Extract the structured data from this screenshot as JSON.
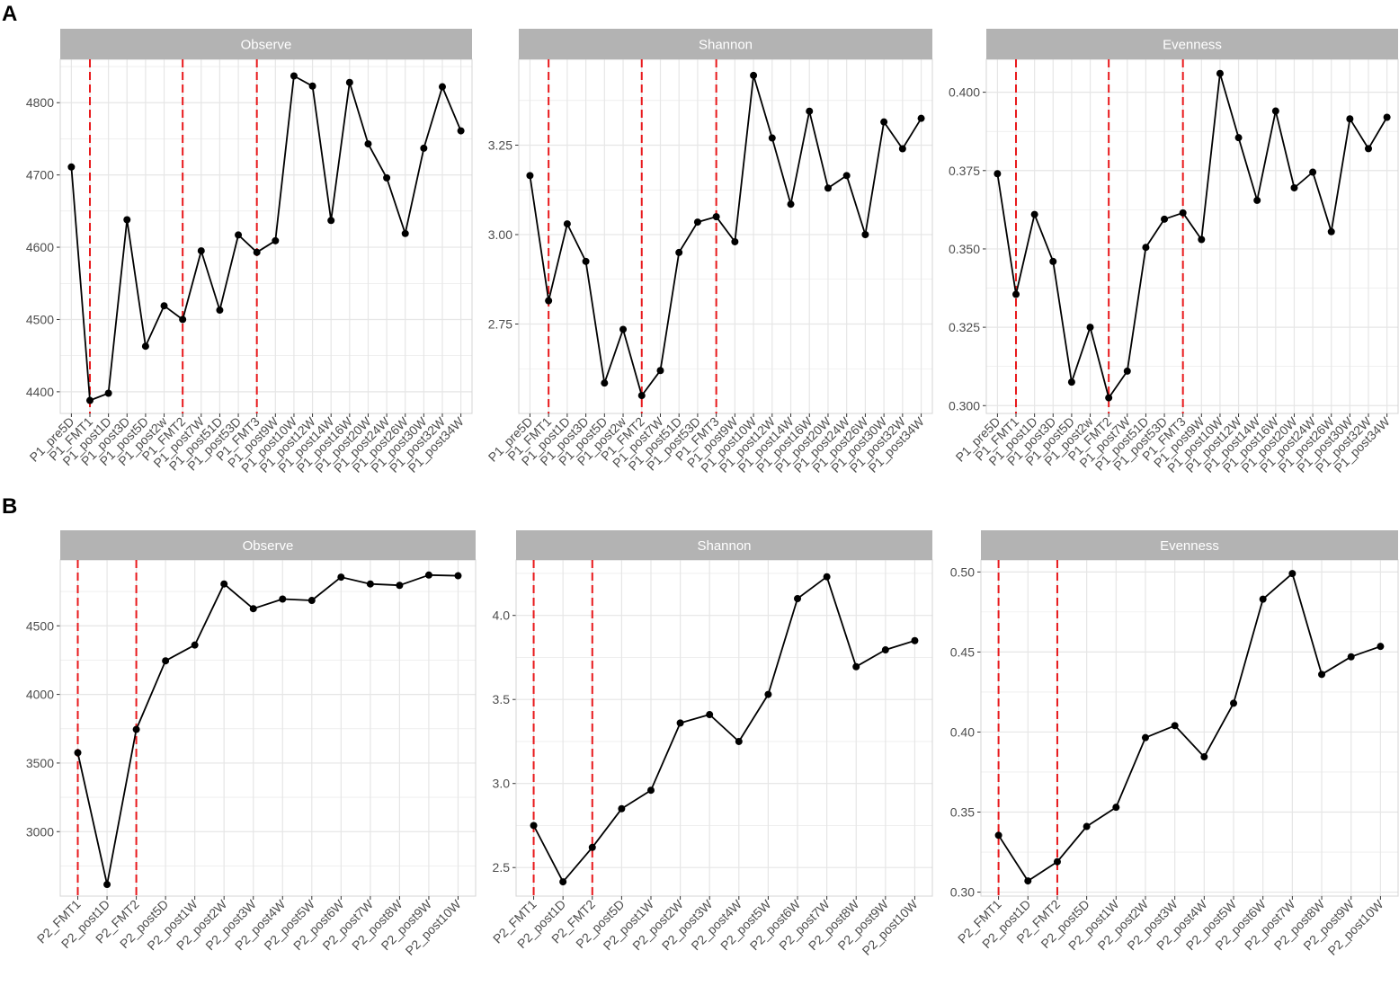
{
  "rows": [
    {
      "label": "A"
    },
    {
      "label": "B"
    }
  ],
  "colors": {
    "strip_bg": "#b3b3b3",
    "strip_text": "#ffffff",
    "grid": "#e6e6e6",
    "panel_border": "#d4d4d4",
    "line": "#000000",
    "point": "#000000",
    "vline": "#e8191c",
    "tick_text": "#4d4d4d"
  },
  "chart_data": [
    {
      "type": "line",
      "title": "Observe",
      "categories": [
        "P1_pre5D",
        "P1_FMT1",
        "P1_post1D",
        "P1_post3D",
        "P1_post5D",
        "P1_post2w",
        "P1_FMT2",
        "P1_post7W",
        "P1_post51D",
        "P1_post53D",
        "P1_FMT3",
        "P1_post9W",
        "P1_post10W",
        "P1_post12W",
        "P1_post14W",
        "P1_post16W",
        "P1_post20W",
        "P1_post24W",
        "P1_post26W",
        "P1_post30W",
        "P1_post32W",
        "P1_post34W"
      ],
      "values": [
        4711,
        4388,
        4398,
        4638,
        4463,
        4519,
        4500,
        4595,
        4513,
        4617,
        4593,
        4609,
        4837,
        4823,
        4637,
        4828,
        4743,
        4696,
        4619,
        4737,
        4822,
        4761
      ],
      "vlines": [
        "P1_FMT1",
        "P1_FMT2",
        "P1_FMT3"
      ],
      "yticks": [
        "4400",
        "4500",
        "4600",
        "4700",
        "4800"
      ],
      "ylim": [
        4370,
        4860
      ]
    },
    {
      "type": "line",
      "title": "Shannon",
      "categories": [
        "P1_pre5D",
        "P1_FMT1",
        "P1_post1D",
        "P1_post3D",
        "P1_post5D",
        "P1_post2w",
        "P1_FMT2",
        "P1_post7W",
        "P1_post51D",
        "P1_post53D",
        "P1_FMT3",
        "P1_post9W",
        "P1_post10W",
        "P1_post12W",
        "P1_post14W",
        "P1_post16W",
        "P1_post20W",
        "P1_post24W",
        "P1_post26W",
        "P1_post30W",
        "P1_post32W",
        "P1_post34W"
      ],
      "values": [
        3.165,
        2.815,
        3.03,
        2.925,
        2.585,
        2.735,
        2.55,
        2.62,
        2.95,
        3.035,
        3.05,
        2.98,
        3.445,
        3.27,
        3.085,
        3.345,
        3.13,
        3.165,
        3.0,
        3.315,
        3.24,
        3.325
      ],
      "vlines": [
        "P1_FMT1",
        "P1_FMT2",
        "P1_FMT3"
      ],
      "yticks": [
        "2.75",
        "3.00",
        "3.25"
      ],
      "ylim": [
        2.5,
        3.49
      ]
    },
    {
      "type": "line",
      "title": "Evenness",
      "categories": [
        "P1_pre5D",
        "P1_FMT1",
        "P1_post1D",
        "P1_post3D",
        "P1_post5D",
        "P1_post2w",
        "P1_FMT2",
        "P1_post7W",
        "P1_post51D",
        "P1_post53D",
        "P1_FMT3",
        "P1_post9W",
        "P1_post10W",
        "P1_post12W",
        "P1_post14W",
        "P1_post16W",
        "P1_post20W",
        "P1_post24W",
        "P1_post26W",
        "P1_post30W",
        "P1_post32W",
        "P1_post34W"
      ],
      "values": [
        0.374,
        0.3355,
        0.361,
        0.346,
        0.3075,
        0.325,
        0.3025,
        0.311,
        0.3505,
        0.3595,
        0.3615,
        0.353,
        0.406,
        0.3855,
        0.3655,
        0.394,
        0.3695,
        0.3745,
        0.3555,
        0.3915,
        0.382,
        0.392
      ],
      "vlines": [
        "P1_FMT1",
        "P1_FMT2",
        "P1_FMT3"
      ],
      "yticks": [
        "0.300",
        "0.325",
        "0.350",
        "0.375",
        "0.400"
      ],
      "ylim": [
        0.2975,
        0.4105
      ]
    },
    {
      "type": "line",
      "title": "Observe",
      "categories": [
        "P2_FMT1",
        "P2_post1D",
        "P2_FMT2",
        "P2_post5D",
        "P2_post1W",
        "P2_post2W",
        "P2_post3W",
        "P2_post4W",
        "P2_post5W",
        "P2_post6W",
        "P2_post7W",
        "P2_post8W",
        "P2_post9W",
        "P2_post10W"
      ],
      "values": [
        3575,
        2615,
        3745,
        4245,
        4360,
        4805,
        4625,
        4695,
        4685,
        4855,
        4805,
        4795,
        4870,
        4865
      ],
      "vlines": [
        "P2_FMT1",
        "P2_FMT2"
      ],
      "yticks": [
        "3000",
        "3500",
        "4000",
        "4500"
      ],
      "ylim": [
        2530,
        4980
      ]
    },
    {
      "type": "line",
      "title": "Shannon",
      "categories": [
        "P2_FMT1",
        "P2_post1D",
        "P2_FMT2",
        "P2_post5D",
        "P2_post1W",
        "P2_post2W",
        "P2_post3W",
        "P2_post4W",
        "P2_post5W",
        "P2_post6W",
        "P2_post7W",
        "P2_post8W",
        "P2_post9W",
        "P2_post10W"
      ],
      "values": [
        2.75,
        2.415,
        2.62,
        2.85,
        2.96,
        3.36,
        3.41,
        3.25,
        3.53,
        4.1,
        4.23,
        3.695,
        3.795,
        3.85
      ],
      "vlines": [
        "P2_FMT1",
        "P2_FMT2"
      ],
      "yticks": [
        "2.5",
        "3.0",
        "3.5",
        "4.0"
      ],
      "ylim": [
        2.33,
        4.33
      ]
    },
    {
      "type": "line",
      "title": "Evenness",
      "categories": [
        "P2_FMT1",
        "P2_post1D",
        "P2_FMT2",
        "P2_post5D",
        "P2_post1W",
        "P2_post2W",
        "P2_post3W",
        "P2_post4W",
        "P2_post5W",
        "P2_post6W",
        "P2_post7W",
        "P2_post8W",
        "P2_post9W",
        "P2_post10W"
      ],
      "values": [
        0.3355,
        0.307,
        0.319,
        0.341,
        0.353,
        0.3965,
        0.404,
        0.3845,
        0.418,
        0.483,
        0.499,
        0.436,
        0.447,
        0.4535
      ],
      "vlines": [
        "P2_FMT1",
        "P2_FMT2"
      ],
      "yticks": [
        "0.30",
        "0.35",
        "0.40",
        "0.45",
        "0.50"
      ],
      "ylim": [
        0.2975,
        0.5075
      ]
    }
  ]
}
